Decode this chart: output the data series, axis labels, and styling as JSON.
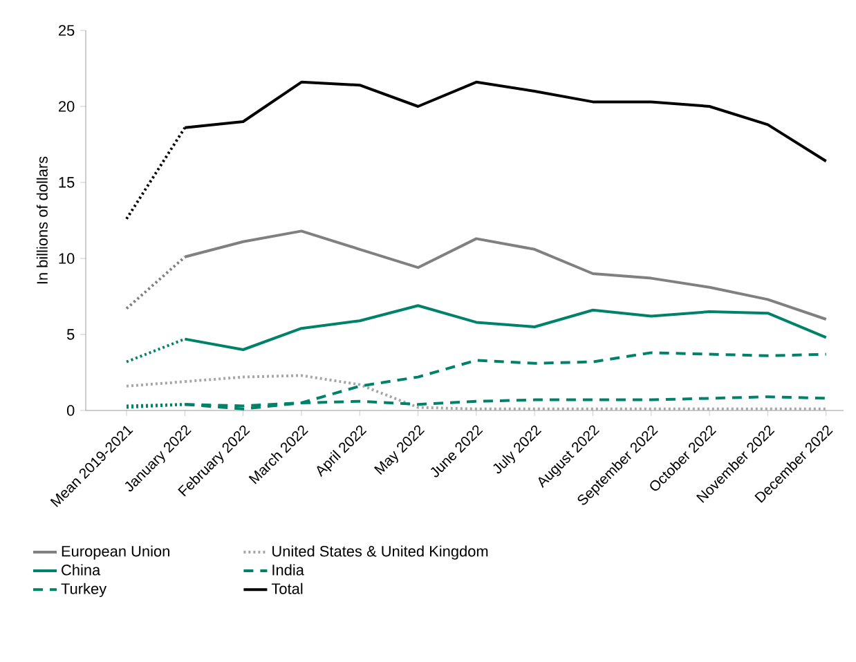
{
  "chart_data": {
    "type": "line",
    "ylabel": "In billions of dollars",
    "categories": [
      "Mean 2019-2021",
      "January 2022",
      "February 2022",
      "March 2022",
      "April 2022",
      "May 2022",
      "June 2022",
      "July 2022",
      "August 2022",
      "September 2022",
      "October 2022",
      "November 2022",
      "December 2022"
    ],
    "ylim": [
      0,
      25
    ],
    "yticks": [
      0,
      5,
      10,
      15,
      20,
      25
    ],
    "grid": false,
    "legend": "bottom",
    "marker": "none",
    "series": [
      {
        "name": "European Union",
        "color": "#808080",
        "line_style": "solid",
        "values": [
          6.7,
          10.1,
          11.1,
          11.8,
          10.6,
          9.4,
          11.3,
          10.6,
          9.0,
          8.7,
          8.1,
          7.3,
          6.0
        ]
      },
      {
        "name": "United States & United Kingdom",
        "color": "#a6a6a6",
        "line_style": "dotted",
        "values": [
          1.6,
          1.9,
          2.2,
          2.3,
          1.7,
          0.2,
          0.1,
          0.1,
          0.1,
          0.1,
          0.1,
          0.1,
          0.1
        ]
      },
      {
        "name": "China",
        "color": "#00826a",
        "line_style": "solid",
        "values": [
          3.2,
          4.7,
          4.0,
          5.4,
          5.9,
          6.9,
          5.8,
          5.5,
          6.6,
          6.2,
          6.5,
          6.4,
          4.8
        ]
      },
      {
        "name": "India",
        "color": "#00826a",
        "line_style": "dashed",
        "values": [
          0.3,
          0.4,
          0.1,
          0.5,
          1.6,
          2.2,
          3.3,
          3.1,
          3.2,
          3.8,
          3.7,
          3.6,
          3.7
        ]
      },
      {
        "name": "Turkey",
        "color": "#00826a",
        "line_style": "dashed",
        "values": [
          0.2,
          0.4,
          0.3,
          0.5,
          0.6,
          0.4,
          0.6,
          0.7,
          0.7,
          0.7,
          0.8,
          0.9,
          0.8
        ]
      },
      {
        "name": "Total",
        "color": "#000000",
        "line_style": "solid",
        "values": [
          12.6,
          18.6,
          19.0,
          21.6,
          21.4,
          20.0,
          21.6,
          21.0,
          20.3,
          20.3,
          20.0,
          18.8,
          16.4
        ]
      }
    ]
  }
}
